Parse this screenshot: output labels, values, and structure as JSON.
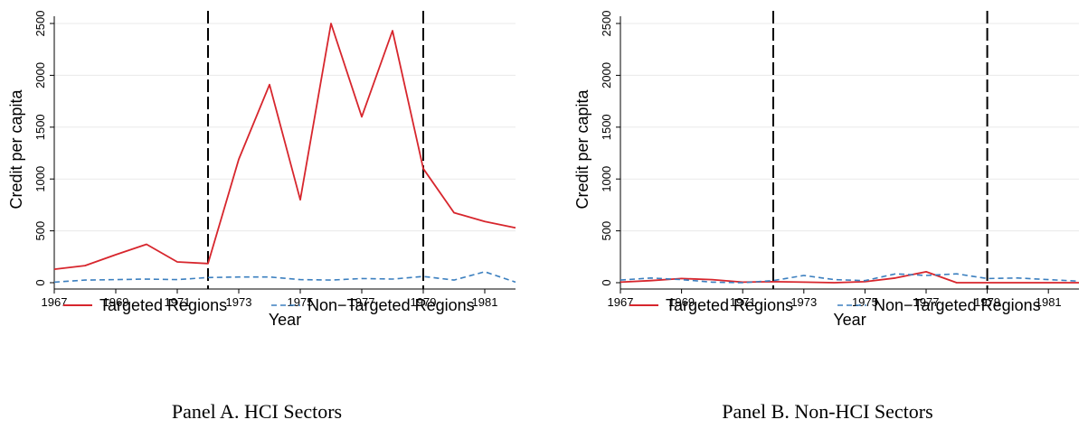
{
  "colors": {
    "targeted": "#d7262d",
    "non_targeted": "#3b7fbf",
    "grid": "#e9e9e9",
    "ref_line": "#000000"
  },
  "captions": [
    "Panel A. HCI Sectors",
    "Panel B. Non-HCI Sectors"
  ],
  "chart_data": [
    {
      "type": "line",
      "title": "",
      "xlabel": "Year",
      "ylabel": "Credit per capita",
      "xlim": [
        1967,
        1982
      ],
      "ylim": [
        0,
        2500
      ],
      "xticks": [
        1967,
        1969,
        1971,
        1973,
        1975,
        1977,
        1979,
        1981
      ],
      "yticks": [
        0,
        500,
        1000,
        1500,
        2000,
        2500
      ],
      "grid": true,
      "legend": "bottom",
      "reference_lines_x": [
        1972,
        1979
      ],
      "x": [
        1967,
        1968,
        1969,
        1970,
        1971,
        1972,
        1973,
        1974,
        1975,
        1976,
        1977,
        1978,
        1979,
        1980,
        1981,
        1982
      ],
      "series": [
        {
          "name": "Targeted Regions",
          "style": "solid",
          "values": [
            130,
            165,
            270,
            370,
            200,
            185,
            1190,
            1910,
            800,
            2500,
            1600,
            2430,
            1100,
            675,
            590,
            530
          ]
        },
        {
          "name": "Non−Targeted Regions",
          "style": "dashed",
          "values": [
            5,
            25,
            30,
            35,
            30,
            50,
            55,
            55,
            30,
            25,
            40,
            35,
            60,
            25,
            105,
            5
          ]
        }
      ]
    },
    {
      "type": "line",
      "title": "",
      "xlabel": "Year",
      "ylabel": "Credit per capita",
      "xlim": [
        1967,
        1982
      ],
      "ylim": [
        0,
        2500
      ],
      "xticks": [
        1967,
        1969,
        1971,
        1973,
        1975,
        1977,
        1979,
        1981
      ],
      "yticks": [
        0,
        500,
        1000,
        1500,
        2000,
        2500
      ],
      "grid": true,
      "legend": "bottom",
      "reference_lines_x": [
        1972,
        1979
      ],
      "x": [
        1967,
        1968,
        1969,
        1970,
        1971,
        1972,
        1973,
        1974,
        1975,
        1976,
        1977,
        1978,
        1979,
        1980,
        1981,
        1982
      ],
      "series": [
        {
          "name": "Targeted Regions",
          "style": "solid",
          "values": [
            5,
            20,
            40,
            30,
            5,
            10,
            5,
            0,
            10,
            45,
            105,
            0,
            0,
            0,
            0,
            0
          ]
        },
        {
          "name": "Non−Targeted Regions",
          "style": "dashed",
          "values": [
            25,
            45,
            30,
            5,
            0,
            20,
            70,
            30,
            20,
            85,
            70,
            85,
            40,
            45,
            30,
            15
          ]
        }
      ]
    }
  ]
}
